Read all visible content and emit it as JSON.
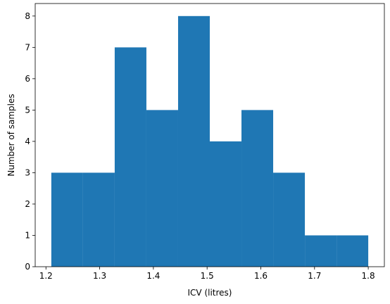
{
  "chart_data": {
    "type": "bar",
    "subtype": "histogram",
    "bin_edges": [
      1.21,
      1.269,
      1.328,
      1.387,
      1.446,
      1.505,
      1.564,
      1.623,
      1.682,
      1.741,
      1.8
    ],
    "values": [
      3,
      3,
      7,
      5,
      8,
      4,
      5,
      3,
      1,
      1
    ],
    "xlabel": "ICV (litres)",
    "ylabel": "Number of samples",
    "xlim": [
      1.18,
      1.83
    ],
    "ylim": [
      0,
      8.4
    ],
    "xticks": [
      1.2,
      1.3,
      1.4,
      1.5,
      1.6,
      1.7,
      1.8
    ],
    "xtick_labels": [
      "1.2",
      "1.3",
      "1.4",
      "1.5",
      "1.6",
      "1.7",
      "1.8"
    ],
    "yticks": [
      0,
      1,
      2,
      3,
      4,
      5,
      6,
      7,
      8
    ],
    "ytick_labels": [
      "0",
      "1",
      "2",
      "3",
      "4",
      "5",
      "6",
      "7",
      "8"
    ],
    "bar_color": "#1f77b4",
    "grid": false,
    "legend": "none"
  }
}
